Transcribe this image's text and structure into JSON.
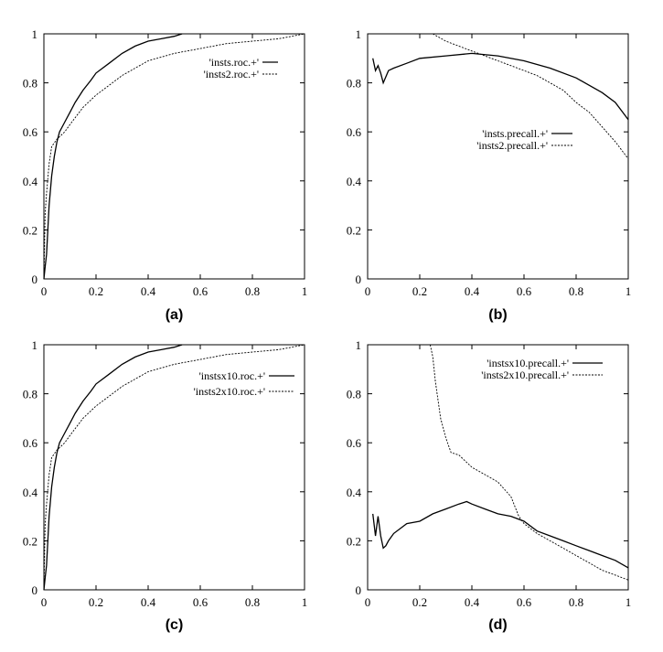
{
  "chart_data": [
    {
      "type": "line",
      "caption": "(a)",
      "xlim": [
        0,
        1
      ],
      "ylim": [
        0,
        1
      ],
      "xticks": [
        "0",
        "0.2",
        "0.4",
        "0.6",
        "0.8",
        "1"
      ],
      "yticks": [
        "0",
        "0.2",
        "0.4",
        "0.6",
        "0.8",
        "1"
      ],
      "grid": false,
      "legend_position": "top-right",
      "series": [
        {
          "name": "'insts.roc.+'",
          "style": "solid",
          "x": [
            0,
            0.005,
            0.01,
            0.015,
            0.02,
            0.03,
            0.04,
            0.05,
            0.06,
            0.08,
            0.1,
            0.12,
            0.15,
            0.18,
            0.2,
            0.25,
            0.3,
            0.35,
            0.4,
            0.45,
            0.5,
            0.53
          ],
          "y": [
            0,
            0.05,
            0.1,
            0.2,
            0.3,
            0.42,
            0.5,
            0.56,
            0.6,
            0.64,
            0.68,
            0.72,
            0.77,
            0.81,
            0.84,
            0.88,
            0.92,
            0.95,
            0.97,
            0.98,
            0.99,
            1.0
          ]
        },
        {
          "name": "'insts2.roc.+'",
          "style": "dashed",
          "x": [
            0,
            0.005,
            0.01,
            0.02,
            0.03,
            0.05,
            0.08,
            0.1,
            0.15,
            0.2,
            0.25,
            0.3,
            0.35,
            0.4,
            0.5,
            0.6,
            0.7,
            0.8,
            0.9,
            0.95,
            1.0
          ],
          "y": [
            0,
            0.27,
            0.35,
            0.47,
            0.54,
            0.57,
            0.6,
            0.63,
            0.7,
            0.75,
            0.79,
            0.83,
            0.86,
            0.89,
            0.92,
            0.94,
            0.96,
            0.97,
            0.98,
            0.99,
            1.0
          ]
        }
      ]
    },
    {
      "type": "line",
      "caption": "(b)",
      "xlim": [
        0,
        1
      ],
      "ylim": [
        0,
        1
      ],
      "xticks": [
        "0",
        "0.2",
        "0.4",
        "0.6",
        "0.8",
        "1"
      ],
      "yticks": [
        "0",
        "0.2",
        "0.4",
        "0.6",
        "0.8",
        "1"
      ],
      "grid": false,
      "legend_position": "center-right",
      "series": [
        {
          "name": "'insts.precall.+'",
          "style": "solid",
          "x": [
            0.02,
            0.03,
            0.04,
            0.05,
            0.06,
            0.08,
            0.1,
            0.15,
            0.2,
            0.3,
            0.4,
            0.5,
            0.6,
            0.7,
            0.8,
            0.9,
            0.95,
            1.0
          ],
          "y": [
            0.9,
            0.85,
            0.87,
            0.84,
            0.8,
            0.85,
            0.86,
            0.88,
            0.9,
            0.91,
            0.92,
            0.91,
            0.89,
            0.86,
            0.82,
            0.76,
            0.72,
            0.65
          ]
        },
        {
          "name": "'insts2.precall.+'",
          "style": "dashed",
          "x": [
            0.25,
            0.3,
            0.35,
            0.4,
            0.45,
            0.5,
            0.55,
            0.6,
            0.65,
            0.7,
            0.75,
            0.8,
            0.85,
            0.9,
            0.95,
            1.0
          ],
          "y": [
            1.0,
            0.97,
            0.95,
            0.93,
            0.91,
            0.89,
            0.87,
            0.85,
            0.83,
            0.8,
            0.77,
            0.72,
            0.68,
            0.62,
            0.56,
            0.49
          ]
        }
      ]
    },
    {
      "type": "line",
      "caption": "(c)",
      "xlim": [
        0,
        1
      ],
      "ylim": [
        0,
        1
      ],
      "xticks": [
        "0",
        "0.2",
        "0.4",
        "0.6",
        "0.8",
        "1"
      ],
      "yticks": [
        "0",
        "0.2",
        "0.4",
        "0.6",
        "0.8",
        "1"
      ],
      "grid": false,
      "legend_position": "top-right",
      "series": [
        {
          "name": "'instsx10.roc.+'",
          "style": "solid",
          "x": [
            0,
            0.005,
            0.01,
            0.015,
            0.02,
            0.03,
            0.04,
            0.05,
            0.06,
            0.08,
            0.1,
            0.12,
            0.15,
            0.18,
            0.2,
            0.25,
            0.3,
            0.35,
            0.4,
            0.45,
            0.5,
            0.53
          ],
          "y": [
            0,
            0.05,
            0.1,
            0.2,
            0.3,
            0.42,
            0.5,
            0.56,
            0.6,
            0.64,
            0.68,
            0.72,
            0.77,
            0.81,
            0.84,
            0.88,
            0.92,
            0.95,
            0.97,
            0.98,
            0.99,
            1.0
          ]
        },
        {
          "name": "'insts2x10.roc.+'",
          "style": "dashed",
          "x": [
            0,
            0.005,
            0.01,
            0.02,
            0.03,
            0.05,
            0.08,
            0.1,
            0.15,
            0.2,
            0.25,
            0.3,
            0.35,
            0.4,
            0.5,
            0.6,
            0.7,
            0.8,
            0.9,
            0.95,
            1.0
          ],
          "y": [
            0,
            0.27,
            0.35,
            0.47,
            0.54,
            0.57,
            0.6,
            0.63,
            0.7,
            0.75,
            0.79,
            0.83,
            0.86,
            0.89,
            0.92,
            0.94,
            0.96,
            0.97,
            0.98,
            0.99,
            1.0
          ]
        }
      ]
    },
    {
      "type": "line",
      "caption": "(d)",
      "xlim": [
        0,
        1
      ],
      "ylim": [
        0,
        1
      ],
      "xticks": [
        "0",
        "0.2",
        "0.4",
        "0.6",
        "0.8",
        "1"
      ],
      "yticks": [
        "0",
        "0.2",
        "0.4",
        "0.6",
        "0.8",
        "1"
      ],
      "grid": false,
      "legend_position": "top-right",
      "series": [
        {
          "name": "'instsx10.precall.+'",
          "style": "solid",
          "x": [
            0.02,
            0.03,
            0.04,
            0.05,
            0.06,
            0.07,
            0.08,
            0.1,
            0.15,
            0.2,
            0.25,
            0.3,
            0.35,
            0.38,
            0.4,
            0.45,
            0.5,
            0.55,
            0.6,
            0.65,
            0.7,
            0.75,
            0.8,
            0.85,
            0.9,
            0.95,
            1.0
          ],
          "y": [
            0.31,
            0.22,
            0.3,
            0.22,
            0.17,
            0.18,
            0.2,
            0.23,
            0.27,
            0.28,
            0.31,
            0.33,
            0.35,
            0.36,
            0.35,
            0.33,
            0.31,
            0.3,
            0.28,
            0.24,
            0.22,
            0.2,
            0.18,
            0.16,
            0.14,
            0.12,
            0.09
          ]
        },
        {
          "name": "'insts2x10.precall.+'",
          "style": "dashed",
          "x": [
            0.24,
            0.25,
            0.26,
            0.28,
            0.3,
            0.32,
            0.35,
            0.38,
            0.4,
            0.45,
            0.5,
            0.55,
            0.58,
            0.6,
            0.65,
            0.7,
            0.75,
            0.8,
            0.85,
            0.9,
            0.95,
            1.0
          ],
          "y": [
            1.0,
            0.95,
            0.85,
            0.7,
            0.62,
            0.56,
            0.55,
            0.52,
            0.5,
            0.47,
            0.44,
            0.38,
            0.3,
            0.27,
            0.23,
            0.2,
            0.17,
            0.14,
            0.11,
            0.08,
            0.06,
            0.04
          ]
        }
      ]
    }
  ]
}
